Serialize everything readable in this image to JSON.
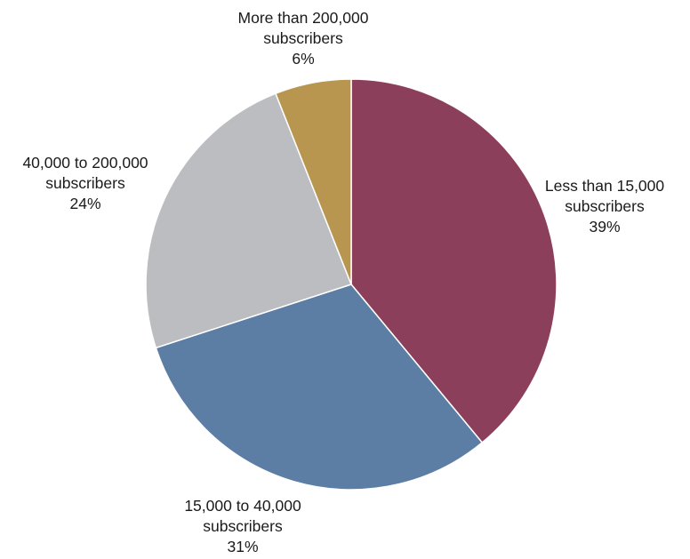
{
  "chart_data": {
    "type": "pie",
    "title": "",
    "start": "12 o'clock",
    "direction": "clockwise",
    "slices": [
      {
        "label_lines": [
          "Less than 15,000",
          "subscribers"
        ],
        "value": 39,
        "value_label": "39%",
        "color": "#8c3f5b"
      },
      {
        "label_lines": [
          "15,000 to 40,000",
          "subscribers"
        ],
        "value": 31,
        "value_label": "31%",
        "color": "#5c7ea4"
      },
      {
        "label_lines": [
          "40,000 to 200,000",
          "subscribers"
        ],
        "value": 24,
        "value_label": "24%",
        "color": "#bcbdc0"
      },
      {
        "label_lines": [
          "More than 200,000",
          "subscribers"
        ],
        "value": 6,
        "value_label": "6%",
        "color": "#b8964f"
      }
    ]
  }
}
